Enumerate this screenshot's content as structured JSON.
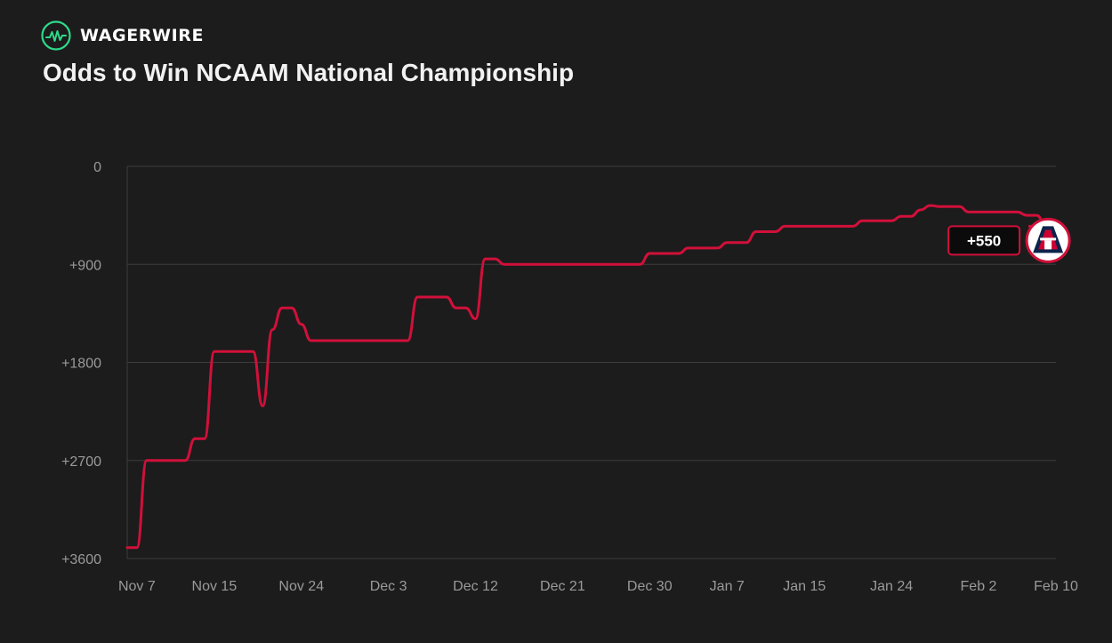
{
  "brand": {
    "name": "WAGERWIRE",
    "logo_icon": "pulse-wave-icon"
  },
  "title": "Odds to Win NCAAM National Championship",
  "colors": {
    "background": "#1c1c1c",
    "line": "#d1103a",
    "grid": "#3d3d3d",
    "tick": "#9a9a9a",
    "brand_green": "#2fd98a"
  },
  "team_logo": {
    "icon": "arizona-a-logo-icon",
    "letter": "A",
    "navy": "#0c234b",
    "red": "#cc0033"
  },
  "chart_data": {
    "type": "line",
    "title": "Odds to Win NCAAM National Championship",
    "xlabel": "",
    "ylabel": "",
    "y_ticks": [
      "0",
      "+900",
      "+1800",
      "+2700",
      "+3600"
    ],
    "y_tick_values": [
      0,
      900,
      1800,
      2700,
      3600
    ],
    "ylim": [
      0,
      3600
    ],
    "y_inverted": true,
    "x_ticks": [
      "Nov 7",
      "Nov 15",
      "Nov 24",
      "Dec 3",
      "Dec 12",
      "Dec 21",
      "Dec 30",
      "Jan 7",
      "Jan 15",
      "Jan 24",
      "Feb 2",
      "Feb 10"
    ],
    "x_tick_dates": [
      "2023-11-07",
      "2023-11-15",
      "2023-11-24",
      "2023-12-03",
      "2023-12-12",
      "2023-12-21",
      "2023-12-30",
      "2024-01-07",
      "2024-01-15",
      "2024-01-24",
      "2024-02-02",
      "2024-02-10"
    ],
    "xlim": [
      "2023-11-06",
      "2024-02-10"
    ],
    "grid": "horizontal",
    "legend": "none",
    "series": [
      {
        "values": [
          [
            "2023-11-06",
            3500
          ],
          [
            "2023-11-07",
            3500
          ],
          [
            "2023-11-08",
            2700
          ],
          [
            "2023-11-12",
            2700
          ],
          [
            "2023-11-13",
            2500
          ],
          [
            "2023-11-14",
            2500
          ],
          [
            "2023-11-15",
            1700
          ],
          [
            "2023-11-19",
            1700
          ],
          [
            "2023-11-20",
            2200
          ],
          [
            "2023-11-21",
            1500
          ],
          [
            "2023-11-22",
            1300
          ],
          [
            "2023-11-23",
            1300
          ],
          [
            "2023-11-24",
            1450
          ],
          [
            "2023-11-25",
            1600
          ],
          [
            "2023-11-29",
            1600
          ],
          [
            "2023-12-01",
            1600
          ],
          [
            "2023-12-05",
            1600
          ],
          [
            "2023-12-06",
            1200
          ],
          [
            "2023-12-09",
            1200
          ],
          [
            "2023-12-10",
            1300
          ],
          [
            "2023-12-11",
            1300
          ],
          [
            "2023-12-12",
            1400
          ],
          [
            "2023-12-13",
            850
          ],
          [
            "2023-12-14",
            850
          ],
          [
            "2023-12-15",
            900
          ],
          [
            "2023-12-20",
            900
          ],
          [
            "2023-12-25",
            900
          ],
          [
            "2023-12-29",
            900
          ],
          [
            "2023-12-30",
            800
          ],
          [
            "2024-01-02",
            800
          ],
          [
            "2024-01-03",
            750
          ],
          [
            "2024-01-06",
            750
          ],
          [
            "2024-01-07",
            700
          ],
          [
            "2024-01-09",
            700
          ],
          [
            "2024-01-10",
            600
          ],
          [
            "2024-01-12",
            600
          ],
          [
            "2024-01-13",
            550
          ],
          [
            "2024-01-20",
            550
          ],
          [
            "2024-01-21",
            500
          ],
          [
            "2024-01-24",
            500
          ],
          [
            "2024-01-25",
            460
          ],
          [
            "2024-01-26",
            460
          ],
          [
            "2024-01-27",
            400
          ],
          [
            "2024-01-28",
            360
          ],
          [
            "2024-01-29",
            370
          ],
          [
            "2024-01-31",
            370
          ],
          [
            "2024-02-01",
            420
          ],
          [
            "2024-02-06",
            420
          ],
          [
            "2024-02-07",
            450
          ],
          [
            "2024-02-08",
            450
          ],
          [
            "2024-02-09",
            550
          ]
        ]
      }
    ],
    "annotations": [
      {
        "date": "2024-02-09",
        "value": 550,
        "text": "+550"
      }
    ]
  }
}
